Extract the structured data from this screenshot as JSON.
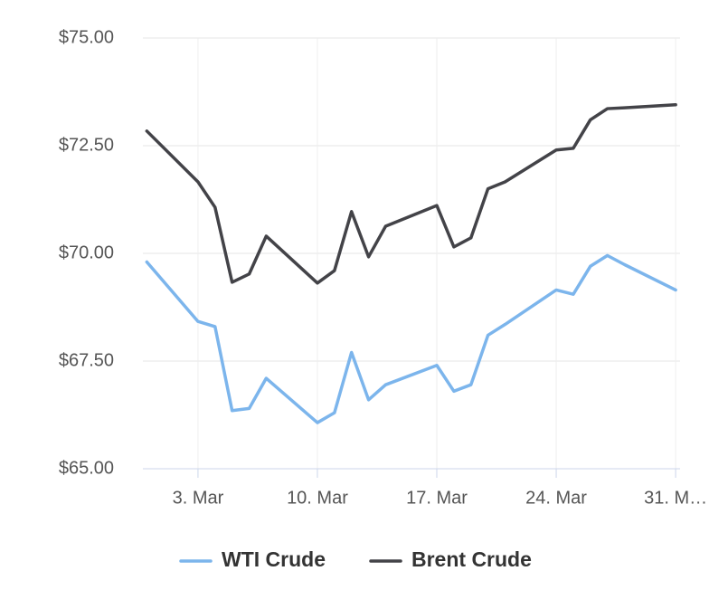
{
  "chart_data": {
    "type": "line",
    "x": [
      0,
      3,
      4,
      5,
      6,
      7,
      10,
      11,
      12,
      13,
      14,
      17,
      18,
      19,
      20,
      21,
      24,
      25,
      26,
      27,
      28,
      31
    ],
    "xlim": [
      -0.23,
      31.26
    ],
    "xticks": [
      {
        "value": 3,
        "label": "3. Mar"
      },
      {
        "value": 10,
        "label": "10. Mar"
      },
      {
        "value": 17,
        "label": "17. Mar"
      },
      {
        "value": 24,
        "label": "24. Mar"
      },
      {
        "value": 31,
        "label": "31. M…"
      }
    ],
    "ylim": [
      65,
      75
    ],
    "yticks": [
      {
        "value": 65,
        "label": "$65.00"
      },
      {
        "value": 67.5,
        "label": "$67.50"
      },
      {
        "value": 70,
        "label": "$70.00"
      },
      {
        "value": 72.5,
        "label": "$72.50"
      },
      {
        "value": 75,
        "label": "$75.00"
      }
    ],
    "grid": true,
    "legend": "bottom",
    "series": [
      {
        "name": "WTI Crude",
        "color": "#7cb5ec",
        "values": [
          69.8,
          68.42,
          68.3,
          66.35,
          66.4,
          67.1,
          66.07,
          66.3,
          67.7,
          66.6,
          66.95,
          67.4,
          66.8,
          66.95,
          68.1,
          68.35,
          69.15,
          69.05,
          69.7,
          69.95,
          69.74,
          69.15
        ]
      },
      {
        "name": "Brent Crude",
        "color": "#434348",
        "values": [
          72.84,
          71.66,
          71.07,
          69.33,
          69.52,
          70.4,
          69.31,
          69.6,
          70.97,
          69.92,
          70.63,
          71.11,
          70.15,
          70.36,
          71.5,
          71.66,
          72.4,
          72.44,
          73.1,
          73.36,
          73.38,
          73.45
        ]
      }
    ]
  }
}
